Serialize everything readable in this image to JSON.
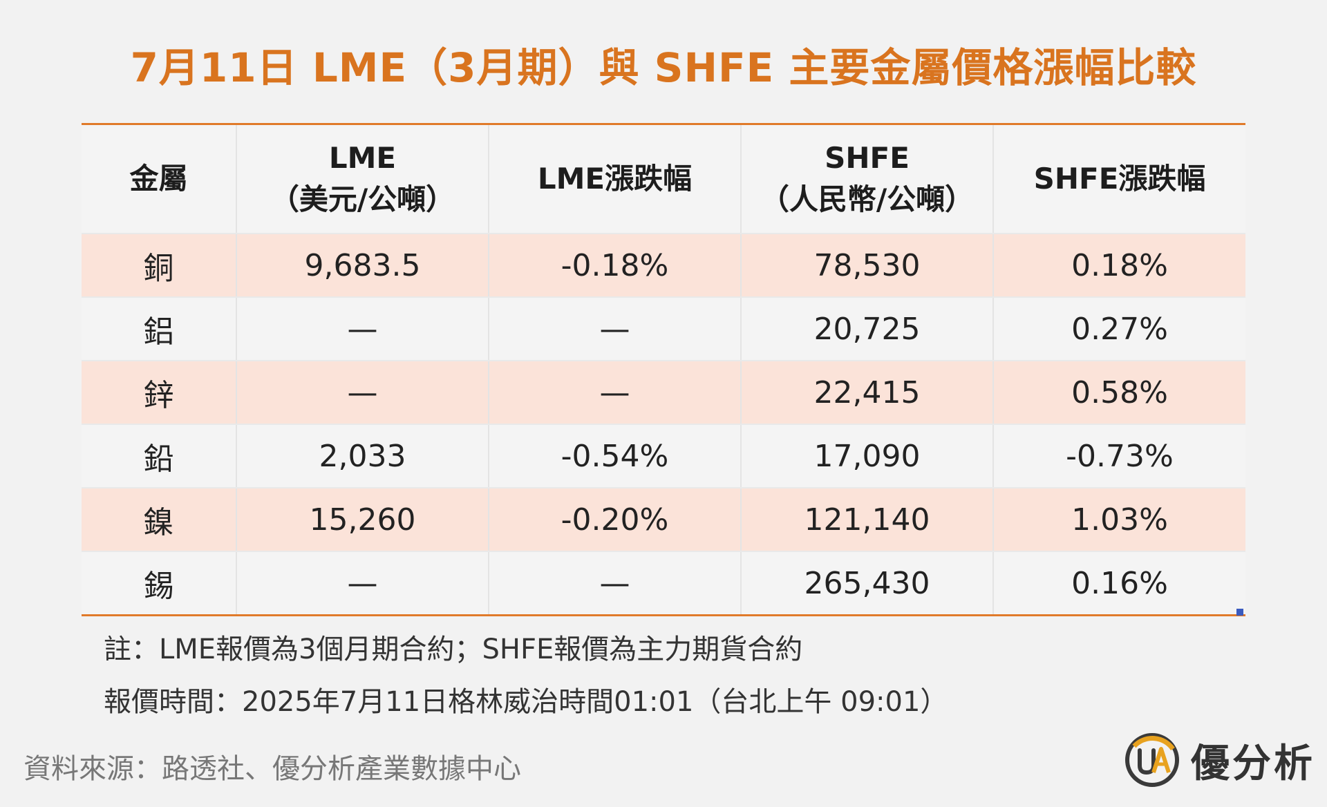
{
  "title": "7月11日 LME（3月期）與 SHFE 主要金屬價格漲幅比較",
  "table": {
    "headers": [
      {
        "line1": "金屬",
        "line2": ""
      },
      {
        "line1": "LME",
        "line2": "（美元/公噸）"
      },
      {
        "line1": "LME漲跌幅",
        "line2": ""
      },
      {
        "line1": "SHFE",
        "line2": "（人民幣/公噸）"
      },
      {
        "line1": "SHFE漲跌幅",
        "line2": ""
      }
    ],
    "rows": [
      [
        "銅",
        "9,683.5",
        "-0.18%",
        "78,530",
        "0.18%"
      ],
      [
        "鋁",
        "—",
        "—",
        "20,725",
        "0.27%"
      ],
      [
        "鋅",
        "—",
        "—",
        "22,415",
        "0.58%"
      ],
      [
        "鉛",
        "2,033",
        "-0.54%",
        "17,090",
        "-0.73%"
      ],
      [
        "鎳",
        "15,260",
        "-0.20%",
        "121,140",
        "1.03%"
      ],
      [
        "錫",
        "—",
        "—",
        "265,430",
        "0.16%"
      ]
    ]
  },
  "notes": {
    "note1": "註：LME報價為3個月期合約；SHFE報價為主力期貨合約",
    "note2": "報價時間：2025年7月11日格林威治時間01:01（台北上午 09:01）"
  },
  "source": "資料來源：路透社、優分析產業數據中心",
  "brand": {
    "name": "優分析",
    "logo_icon": "ua-logo-icon",
    "accent_color": "#e8a21f"
  },
  "colors": {
    "title": "#d9741f",
    "rule": "#e07a2a",
    "row_shade": "#fbe3d9"
  }
}
